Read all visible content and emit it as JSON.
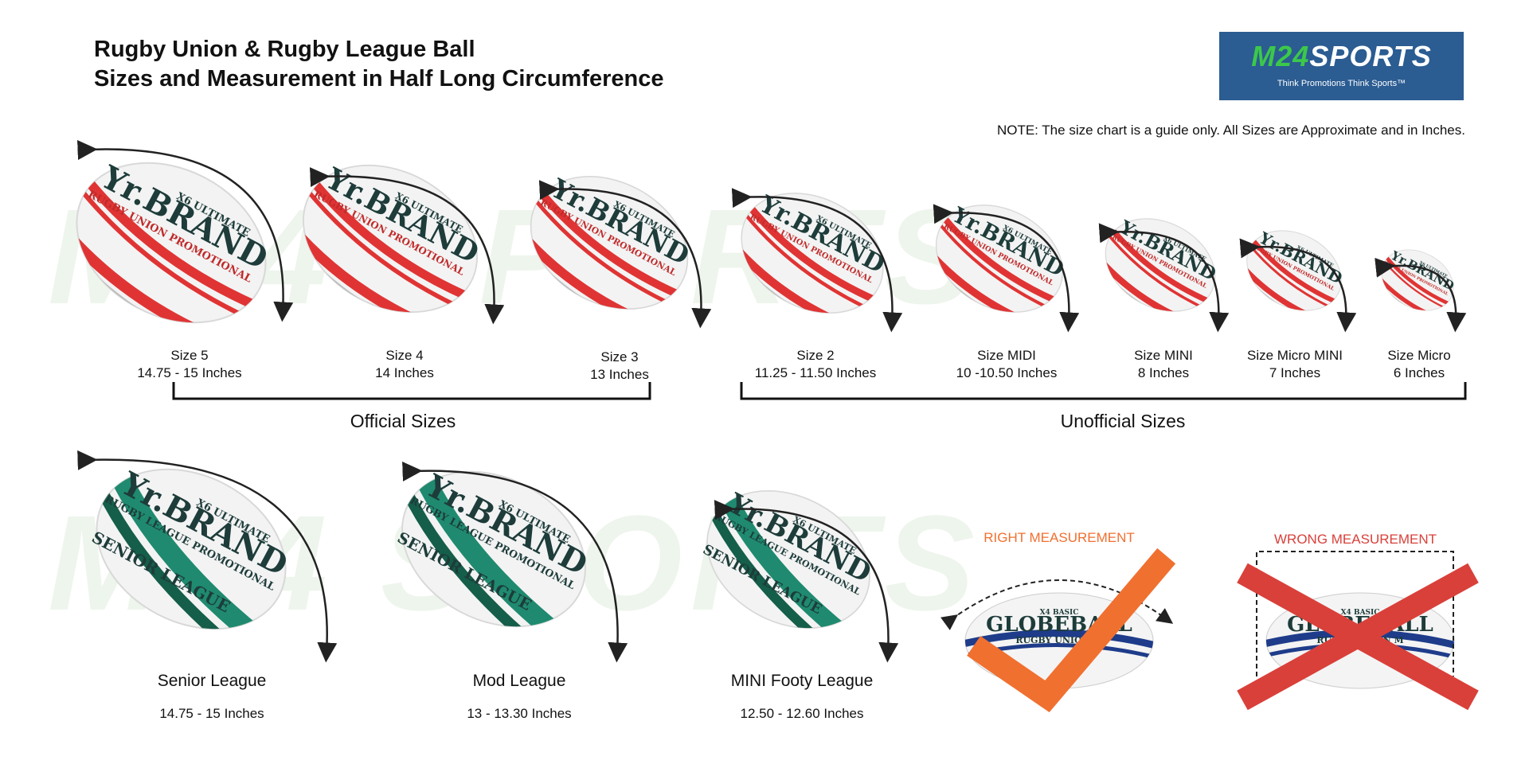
{
  "title": {
    "line1": "Rugby Union & Rugby League Ball",
    "line2": "Sizes and Measurement  in Half Long Circumference"
  },
  "logo": {
    "brand_left": "M24",
    "brand_right": "SPORTS",
    "tagline": "Think Promotions Think Sports™"
  },
  "note": "NOTE:  The size chart is a guide only. All Sizes are Approximate and in Inches.",
  "ball_brand": {
    "series_union": "X6 ULTIMATE",
    "name": "Yr.BRAND",
    "union_sub": "RUGBY UNION PROMOTIONAL",
    "league_sub": "RUGBY LEAGUE PROMOTIONAL",
    "league_tag": "SENIOR LEAGUE"
  },
  "union_sizes": [
    {
      "name": "Size 5",
      "size": "14.75 - 15 Inches"
    },
    {
      "name": "Size 4",
      "size": "14 Inches"
    },
    {
      "name": "Size 3",
      "size": "13 Inches"
    },
    {
      "name": "Size 2",
      "size": "11.25 - 11.50 Inches"
    },
    {
      "name": "Size MIDI",
      "size": "10 -10.50 Inches"
    },
    {
      "name": "Size MINI",
      "size": "8 Inches"
    },
    {
      "name": "Size Micro MINI",
      "size": "7 Inches"
    },
    {
      "name": "Size Micro",
      "size": "6 Inches"
    }
  ],
  "groups": {
    "official": "Official Sizes",
    "unofficial": "Unofficial Sizes"
  },
  "league_sizes": [
    {
      "name": "Senior League",
      "size": "14.75 - 15 Inches"
    },
    {
      "name": "Mod League",
      "size": "13 - 13.30 Inches"
    },
    {
      "name": "MINI Footy League",
      "size": "12.50 - 12.60 Inches"
    }
  ],
  "measurement": {
    "right_label": "RIGHT MEASUREMENT",
    "wrong_label": "WRONG MEASUREMENT",
    "ball_series": "X4 BASIC",
    "ball_name": "GLOBEBALL",
    "ball_sub": "RUGBY UNION M",
    "right_color": "#f07030",
    "wrong_color": "#d9403a"
  },
  "colors": {
    "union_stripe": "#e03434",
    "league_stripe": "#1f8a6f",
    "ball_text": "#1d3c3a",
    "measure_ball_stripe": "#1e3c8a"
  }
}
